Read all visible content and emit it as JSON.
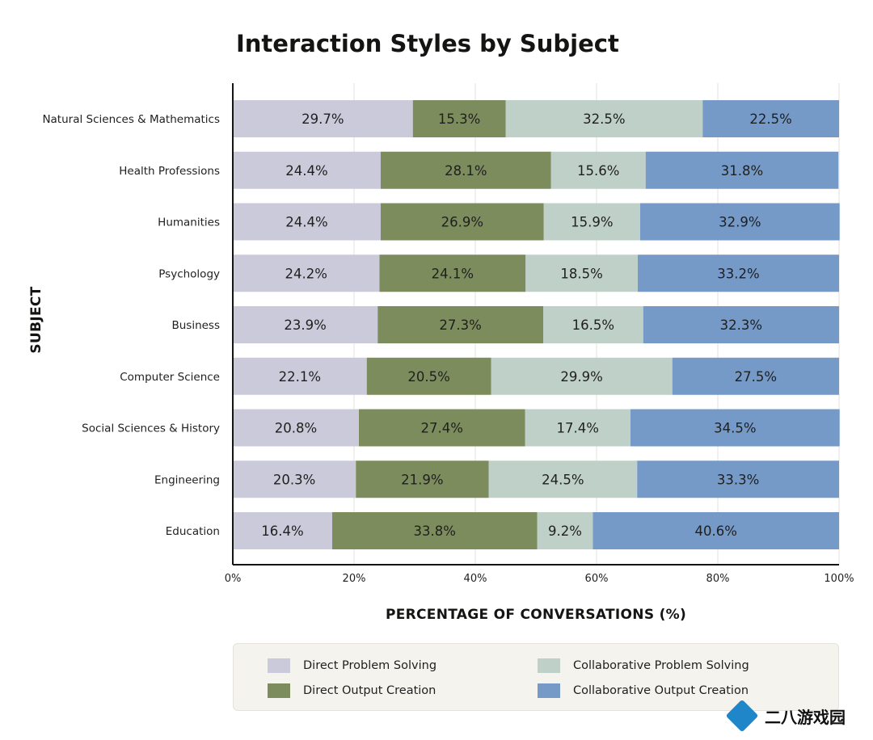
{
  "chart_data": {
    "type": "bar",
    "orientation": "horizontal",
    "stacked": true,
    "title": "Interaction Styles by Subject",
    "xlabel": "PERCENTAGE OF CONVERSATIONS (%)",
    "ylabel": "SUBJECT",
    "xlim": [
      0,
      100
    ],
    "x_ticks": [
      "0%",
      "20%",
      "40%",
      "60%",
      "80%",
      "100%"
    ],
    "grid": "vertical",
    "legend_position": "bottom",
    "categories": [
      "Natural Sciences & Mathematics",
      "Health Professions",
      "Humanities",
      "Psychology",
      "Business",
      "Computer Science",
      "Social Sciences & History",
      "Engineering",
      "Education"
    ],
    "series": [
      {
        "name": "Direct Problem Solving",
        "color": "#cbcadb",
        "values": [
          29.7,
          24.4,
          24.4,
          24.2,
          23.9,
          22.1,
          20.8,
          20.3,
          16.4
        ]
      },
      {
        "name": "Direct Output Creation",
        "color": "#7d8c5d",
        "values": [
          15.3,
          28.1,
          26.9,
          24.1,
          27.3,
          20.5,
          27.4,
          21.9,
          33.8
        ]
      },
      {
        "name": "Collaborative Problem Solving",
        "color": "#bfd0c8",
        "values": [
          32.5,
          15.6,
          15.9,
          18.5,
          16.5,
          29.9,
          17.4,
          24.5,
          9.2
        ]
      },
      {
        "name": "Collaborative Output Creation",
        "color": "#759ac8",
        "values": [
          22.5,
          31.8,
          32.9,
          33.2,
          32.3,
          27.5,
          34.5,
          33.3,
          40.6
        ]
      }
    ]
  },
  "watermark": {
    "text": "二八游戏园"
  }
}
